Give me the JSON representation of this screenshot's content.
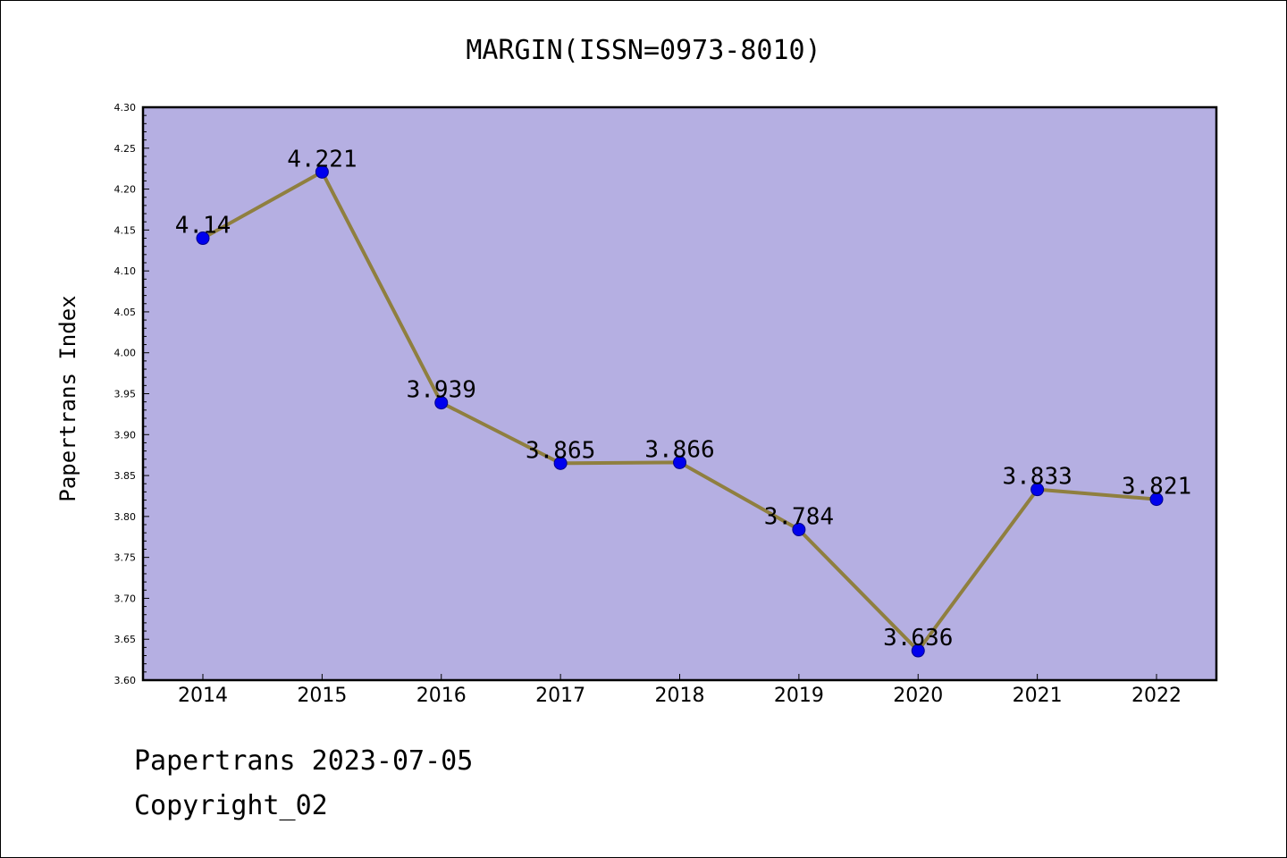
{
  "chart_data": {
    "type": "line",
    "title": "MARGIN(ISSN=0973-8010)",
    "xlabel": "",
    "ylabel": "Papertrans Index",
    "categories": [
      "2014",
      "2015",
      "2016",
      "2017",
      "2018",
      "2019",
      "2020",
      "2021",
      "2022"
    ],
    "series": [
      {
        "values": [
          4.14,
          4.221,
          3.939,
          3.865,
          3.866,
          3.784,
          3.636,
          3.833,
          3.821
        ],
        "labels": [
          "4.14",
          "4.221",
          "3.939",
          "3.865",
          "3.866",
          "3.784",
          "3.636",
          "3.833",
          "3.821"
        ]
      }
    ],
    "ylim": [
      3.6,
      4.3
    ],
    "yticks": [
      "3.60",
      "3.65",
      "3.70",
      "3.75",
      "3.80",
      "3.85",
      "3.90",
      "3.95",
      "4.00",
      "4.05",
      "4.10",
      "4.15",
      "4.20",
      "4.25",
      "4.30"
    ],
    "grid": false,
    "legend": "none",
    "colors": {
      "plot_background": "#b5afe2",
      "line": "#8f7f3f",
      "marker": "#0000ee"
    }
  },
  "footer": {
    "line1": "Papertrans 2023-07-05",
    "line2": "Copyright_02"
  }
}
